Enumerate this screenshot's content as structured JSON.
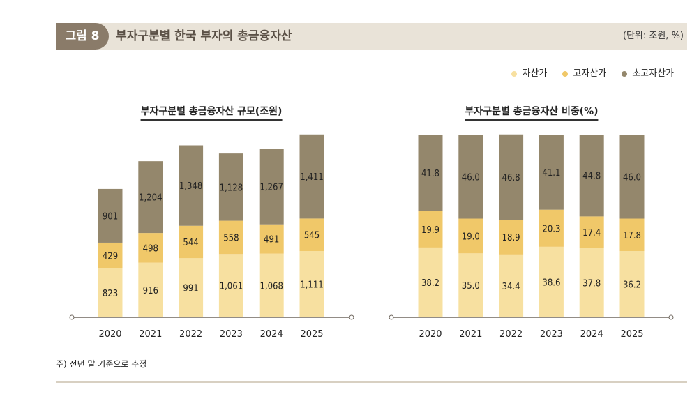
{
  "header": {
    "badge": "그림 8",
    "title": "부자구분별 한국 부자의 총금융자산",
    "unit": "(단위: 조원, %)"
  },
  "legend": [
    {
      "label": "자산가",
      "color": "#f7e0a0"
    },
    {
      "label": "고자산가",
      "color": "#f0c869"
    },
    {
      "label": "초고자산가",
      "color": "#94876c"
    }
  ],
  "chart_data": [
    {
      "type": "bar",
      "stacked": true,
      "title": "부자구분별 총금융자산 규모(조원)",
      "categories": [
        "2020",
        "2021",
        "2022",
        "2023",
        "2024",
        "2025"
      ],
      "series": [
        {
          "name": "자산가",
          "values": [
            823,
            916,
            991,
            1061,
            1068,
            1111
          ]
        },
        {
          "name": "고자산가",
          "values": [
            429,
            498,
            544,
            558,
            491,
            545
          ]
        },
        {
          "name": "초고자산가",
          "values": [
            901,
            1204,
            1348,
            1128,
            1267,
            1411
          ]
        }
      ],
      "labels": [
        [
          "823",
          "916",
          "991",
          "1,061",
          "1,068",
          "1,111"
        ],
        [
          "429",
          "498",
          "544",
          "558",
          "491",
          "545"
        ],
        [
          "901",
          "1,204",
          "1,348",
          "1,128",
          "1,267",
          "1,411"
        ]
      ]
    },
    {
      "type": "bar",
      "stacked": true,
      "title": "부자구분별 총금융자산 비중(%)",
      "categories": [
        "2020",
        "2021",
        "2022",
        "2023",
        "2024",
        "2025"
      ],
      "series": [
        {
          "name": "자산가",
          "values": [
            38.2,
            35.0,
            34.4,
            38.6,
            37.8,
            36.2
          ]
        },
        {
          "name": "고자산가",
          "values": [
            19.9,
            19.0,
            18.9,
            20.3,
            17.4,
            17.8
          ]
        },
        {
          "name": "초고자산가",
          "values": [
            41.8,
            46.0,
            46.8,
            41.1,
            44.8,
            46.0
          ]
        }
      ],
      "labels": [
        [
          "38.2",
          "35.0",
          "34.4",
          "38.6",
          "37.8",
          "36.2"
        ],
        [
          "19.9",
          "19.0",
          "18.9",
          "20.3",
          "17.4",
          "17.8"
        ],
        [
          "41.8",
          "46.0",
          "46.8",
          "41.1",
          "44.8",
          "46.0"
        ]
      ]
    }
  ],
  "note": "주) 전년 말 기준으로 추정"
}
